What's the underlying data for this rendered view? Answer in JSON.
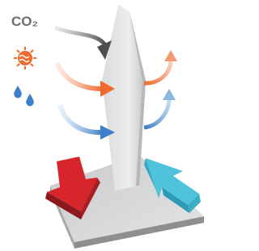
{
  "labels": {
    "co2": "CO₂"
  }
}
